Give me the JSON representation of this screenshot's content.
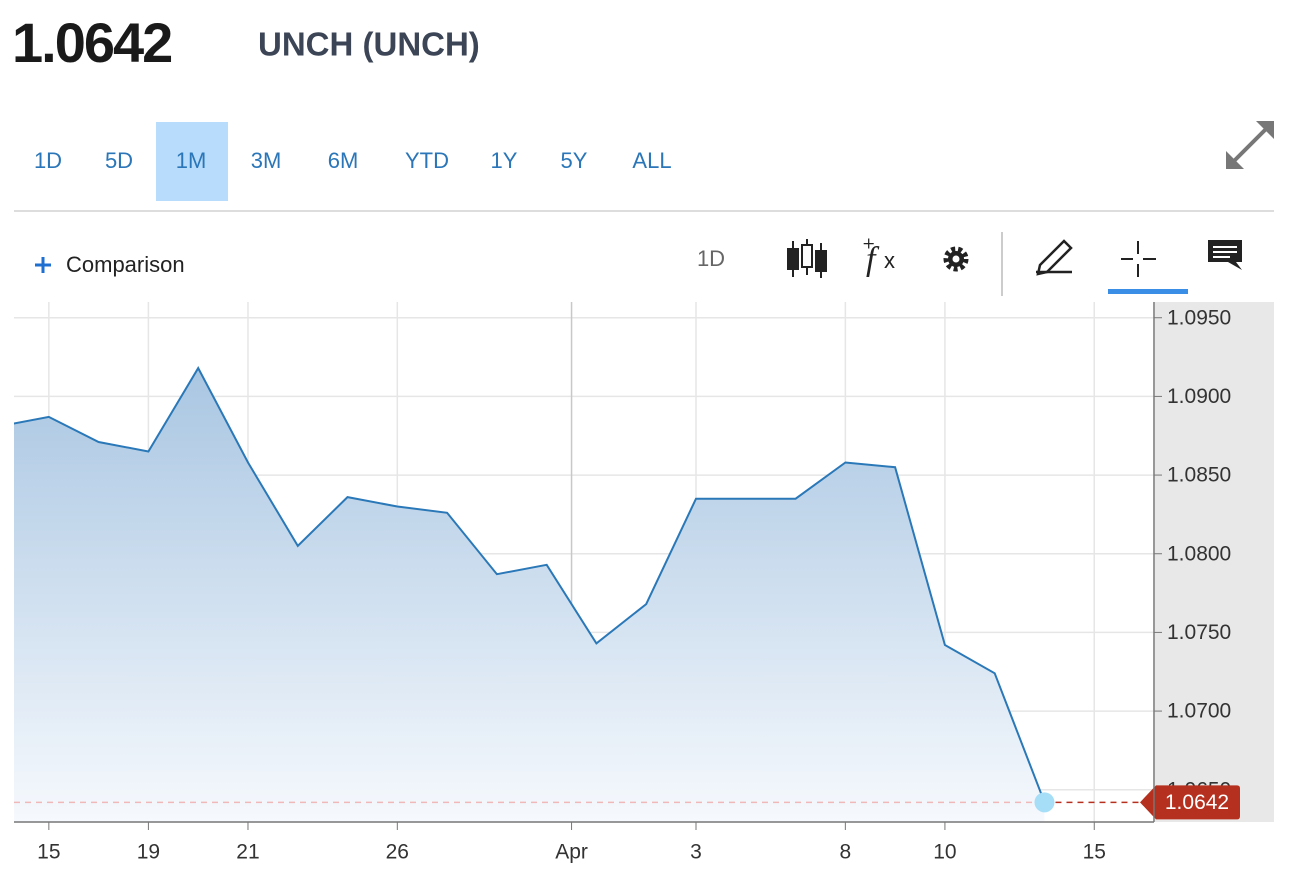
{
  "header": {
    "price": "1.0642",
    "name": "UNCH (UNCH)"
  },
  "timeframes": {
    "options": [
      "1D",
      "5D",
      "1M",
      "3M",
      "6M",
      "YTD",
      "1Y",
      "5Y",
      "ALL"
    ],
    "selected": "1M"
  },
  "toolbar": {
    "comparison": "Comparison",
    "interval": "1D"
  },
  "chart_data": {
    "type": "area",
    "color": "#2a78b8",
    "grid": true,
    "values": [
      1.0881,
      1.0887,
      1.0871,
      1.0865,
      1.0918,
      1.0858,
      1.0805,
      1.0836,
      1.083,
      1.0826,
      1.0787,
      1.0793,
      1.0743,
      1.0768,
      1.0835,
      1.0835,
      1.0835,
      1.0858,
      1.0855,
      1.0742,
      1.0724,
      1.0642
    ],
    "xlim": [
      0.3,
      23.2
    ],
    "xticks": [
      {
        "value": 1,
        "label": "15"
      },
      {
        "value": 3,
        "label": "19"
      },
      {
        "value": 5,
        "label": "21"
      },
      {
        "value": 8,
        "label": "26"
      },
      {
        "value": 11.5,
        "label": "Apr"
      },
      {
        "value": 14,
        "label": "3"
      },
      {
        "value": 17,
        "label": "8"
      },
      {
        "value": 19,
        "label": "10"
      },
      {
        "value": 22,
        "label": "15"
      }
    ],
    "ylim": [
      1.06295,
      1.096
    ],
    "yticks": [
      {
        "value": 1.065,
        "label": "1.0650"
      },
      {
        "value": 1.07,
        "label": "1.0700"
      },
      {
        "value": 1.075,
        "label": "1.0750"
      },
      {
        "value": 1.08,
        "label": "1.0800"
      },
      {
        "value": 1.085,
        "label": "1.0850"
      },
      {
        "value": 1.09,
        "label": "1.0900"
      },
      {
        "value": 1.095,
        "label": "1.0950"
      }
    ]
  }
}
